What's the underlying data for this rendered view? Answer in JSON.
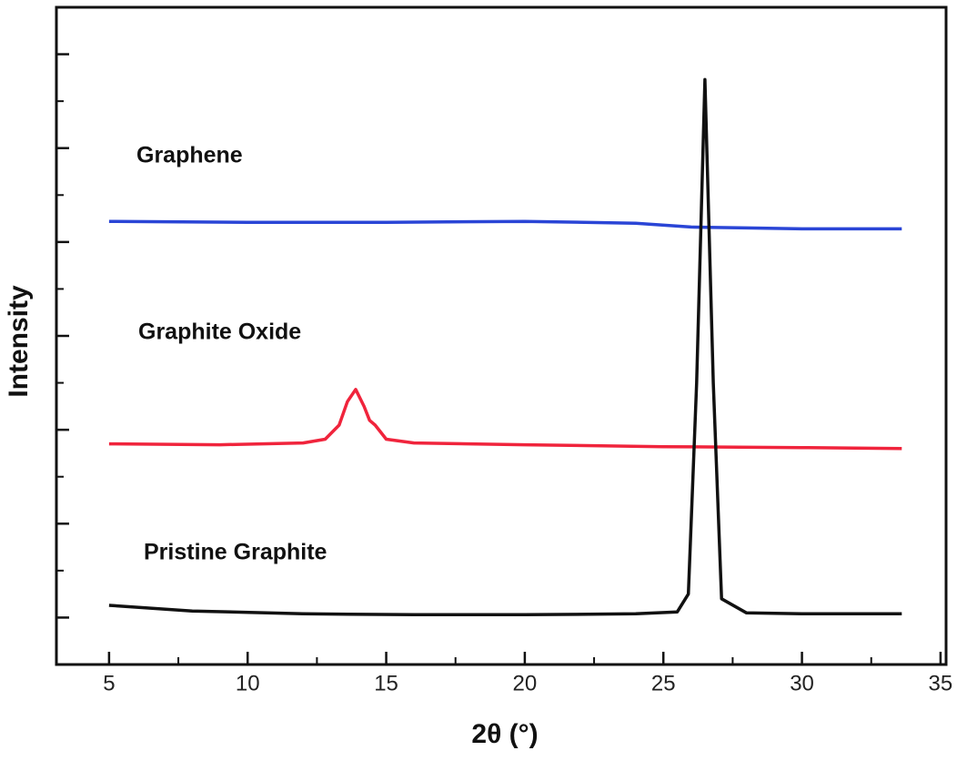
{
  "chart_data": {
    "type": "line",
    "xlabel": "2θ (°)",
    "ylabel": "Intensity",
    "xlim": [
      3.1,
      35.2
    ],
    "xticks": [
      5,
      10,
      15,
      20,
      25,
      30,
      35
    ],
    "xminor": [
      7.5,
      12.5,
      17.5,
      22.5,
      27.5,
      32.5
    ],
    "ylim": [
      -0.5,
      6.5
    ],
    "yticks": [
      0,
      1,
      2,
      3,
      4,
      5,
      6
    ],
    "yminor": [
      0.5,
      1.5,
      2.5,
      3.5,
      4.5,
      5.5
    ],
    "ytick_labels": false,
    "legend": false,
    "series": [
      {
        "name": "Graphene",
        "color": "#2a45d6",
        "x": [
          5,
          10,
          15,
          20,
          24,
          26,
          28,
          30,
          33.6
        ],
        "values": [
          4.22,
          4.21,
          4.21,
          4.22,
          4.2,
          4.16,
          4.15,
          4.14,
          4.14
        ]
      },
      {
        "name": "Graphite Oxide",
        "color": "#f0243c",
        "x": [
          5,
          9,
          12,
          12.8,
          13.3,
          13.6,
          13.9,
          14.2,
          14.4,
          14.6,
          15,
          16,
          20,
          25,
          30,
          33.6
        ],
        "values": [
          1.85,
          1.84,
          1.86,
          1.9,
          2.05,
          2.3,
          2.43,
          2.25,
          2.1,
          2.05,
          1.9,
          1.86,
          1.84,
          1.82,
          1.81,
          1.8
        ]
      },
      {
        "name": "Pristine Graphite",
        "color": "#111111",
        "x": [
          5,
          8,
          12,
          16,
          20,
          24,
          25.5,
          25.9,
          26.2,
          26.5,
          26.8,
          27.1,
          28,
          30,
          33.6
        ],
        "values": [
          0.13,
          0.07,
          0.04,
          0.03,
          0.03,
          0.04,
          0.06,
          0.25,
          2.5,
          5.73,
          2.5,
          0.2,
          0.05,
          0.04,
          0.04
        ]
      }
    ]
  }
}
